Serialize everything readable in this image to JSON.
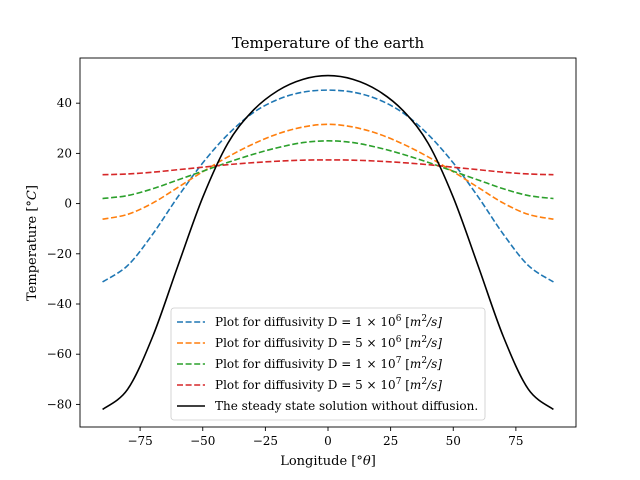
{
  "chart_data": {
    "type": "line",
    "title": "Temperature of the earth",
    "xlabel": "Longitude [°θ]",
    "ylabel": "Temperature [°C]",
    "xlim": [
      -99,
      99
    ],
    "ylim": [
      -89,
      58
    ],
    "xticks": [
      -75,
      -50,
      -25,
      0,
      25,
      50,
      75
    ],
    "yticks": [
      -80,
      -60,
      -40,
      -20,
      0,
      20,
      40
    ],
    "xtick_labels": [
      "−75",
      "−50",
      "−25",
      "0",
      "25",
      "50",
      "75"
    ],
    "ytick_labels": [
      "−80",
      "−60",
      "−40",
      "−20",
      "0",
      "20",
      "40"
    ],
    "grid": false,
    "legend_position": "lower-center",
    "x": [
      -90,
      -80,
      -70,
      -60,
      -50,
      -40,
      -30,
      -20,
      -10,
      0,
      10,
      20,
      30,
      40,
      50,
      60,
      70,
      80,
      90
    ],
    "series": [
      {
        "name": "Plot for diffusivity D = 1 × 10^6 [m^2/s]",
        "style": "dashed",
        "color": "#1f77b4",
        "values": [
          -31.2,
          -24.7,
          -12.2,
          2.6,
          16.2,
          27.5,
          36.1,
          41.5,
          44.4,
          45.2,
          44.4,
          41.5,
          36.1,
          27.5,
          16.2,
          2.6,
          -12.2,
          -24.7,
          -31.2
        ]
      },
      {
        "name": "Plot for diffusivity D = 5 × 10^6 [m^2/s]",
        "style": "dashed",
        "color": "#ff7f0e",
        "values": [
          -6.2,
          -4.3,
          0.2,
          6.4,
          12.7,
          18.6,
          23.7,
          27.8,
          30.5,
          31.6,
          30.5,
          27.8,
          23.7,
          18.6,
          12.7,
          6.4,
          0.2,
          -4.3,
          -6.2
        ]
      },
      {
        "name": "Plot for diffusivity D = 1 × 10^7 [m^2/s]",
        "style": "dashed",
        "color": "#2ca02c",
        "values": [
          2.0,
          3.2,
          5.9,
          9.4,
          12.9,
          16.4,
          19.6,
          22.3,
          24.3,
          25.0,
          24.3,
          22.3,
          19.6,
          16.4,
          12.9,
          9.4,
          5.9,
          3.2,
          2.0
        ]
      },
      {
        "name": "Plot for diffusivity D = 5 × 10^7 [m^2/s]",
        "style": "dashed",
        "color": "#d62728",
        "values": [
          11.5,
          11.8,
          12.5,
          13.5,
          14.5,
          15.5,
          16.3,
          16.9,
          17.3,
          17.4,
          17.3,
          16.9,
          16.3,
          15.5,
          14.5,
          13.5,
          12.5,
          11.8,
          11.5
        ]
      },
      {
        "name": "The steady state solution without diffusion.",
        "style": "solid",
        "color": "#000000",
        "values": [
          -82.0,
          -74.0,
          -53.0,
          -25.0,
          2.5,
          24.0,
          37.0,
          45.0,
          49.5,
          51.0,
          49.5,
          45.0,
          37.0,
          24.0,
          2.5,
          -25.0,
          -53.0,
          -74.0,
          -82.0
        ]
      }
    ]
  },
  "legend": {
    "items": [
      {
        "prefix": "Plot for diffusivity D = 1 × 10",
        "exp": "6",
        "unit_pre": " [",
        "unit": "m",
        "unit_exp": "2",
        "unit_post": "/s]"
      },
      {
        "prefix": "Plot for diffusivity D = 5 × 10",
        "exp": "6",
        "unit_pre": " [",
        "unit": "m",
        "unit_exp": "2",
        "unit_post": "/s]"
      },
      {
        "prefix": "Plot for diffusivity D = 1 × 10",
        "exp": "7",
        "unit_pre": " [",
        "unit": "m",
        "unit_exp": "2",
        "unit_post": "/s]"
      },
      {
        "prefix": "Plot for diffusivity D = 5 × 10",
        "exp": "7",
        "unit_pre": " [",
        "unit": "m",
        "unit_exp": "2",
        "unit_post": "/s]"
      },
      {
        "prefix": "The steady state solution without diffusion.",
        "exp": "",
        "unit_pre": "",
        "unit": "",
        "unit_exp": "",
        "unit_post": ""
      }
    ]
  }
}
